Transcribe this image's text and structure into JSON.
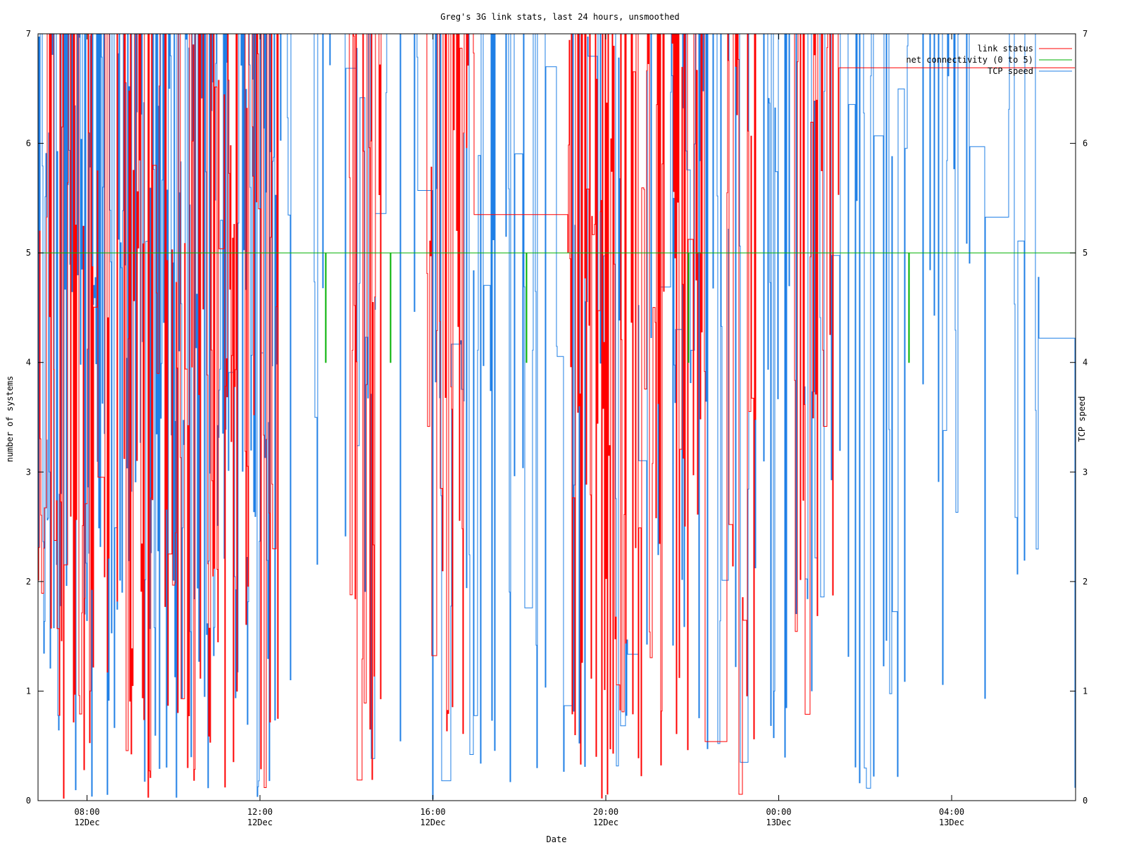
{
  "chart_data": {
    "type": "line",
    "title": "Greg's 3G link stats, last 24 hours, unsmoothed",
    "xlabel": "Date",
    "ylabel": "number of systems",
    "y2label": "TCP speed",
    "xlim": [
      "12Dec 06:52",
      "13Dec 06:52"
    ],
    "ylim": [
      0,
      7
    ],
    "y2lim": [
      0,
      7
    ],
    "y_ticks": [
      "0",
      "1",
      "2",
      "3",
      "4",
      "5",
      "6",
      "7"
    ],
    "x_ticks": [
      {
        "time": "08:00",
        "date": "12Dec"
      },
      {
        "time": "12:00",
        "date": "12Dec"
      },
      {
        "time": "16:00",
        "date": "12Dec"
      },
      {
        "time": "20:00",
        "date": "12Dec"
      },
      {
        "time": "00:00",
        "date": "13Dec"
      },
      {
        "time": "04:00",
        "date": "13Dec"
      }
    ],
    "legend_position": "top-right",
    "grid": false,
    "series": [
      {
        "name": "link status",
        "color": "#ff0000",
        "description_values": "oscillates densely between 0 and 7; dense spikes 07:00-12:30, 14:30-17:00, 19:30-21:30, 23:00-01:30"
      },
      {
        "name": "net connectivity (0 to 5)",
        "color": "#00b000",
        "values_summary": "constant 5 with occasional dips to 4"
      },
      {
        "name": "TCP speed",
        "color": "#1f7fe6",
        "description_values": "highly variable between 0 and 7 across full period"
      }
    ]
  }
}
